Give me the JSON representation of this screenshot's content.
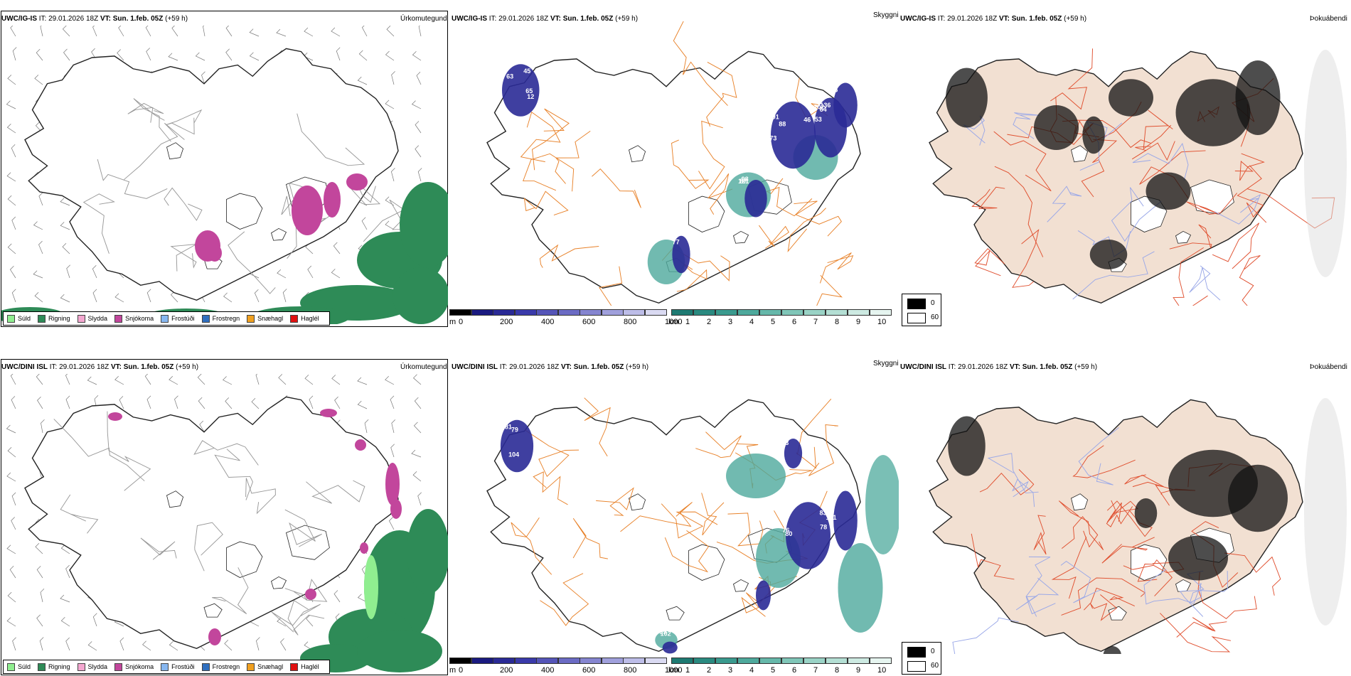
{
  "rows": [
    {
      "model": "UWC/IG-IS",
      "it_label": "IT:",
      "it_value": "29.01.2026 18Z",
      "vt_label": "VT:",
      "vt_value": "Sun. 1.feb. 05Z",
      "lead": "(+59 h)",
      "precip_labels": [
        "63",
        "73",
        "46",
        "87",
        "11",
        "136",
        "45",
        "88",
        "102",
        "98",
        "77",
        "64",
        "65",
        "64",
        "53",
        "121",
        "12",
        "75",
        "12",
        "101"
      ]
    },
    {
      "model": "UWC/DINI ISL",
      "it_label": "IT:",
      "it_value": "29.01.2026 18Z",
      "vt_label": "VT:",
      "vt_value": "Sun. 1.feb. 05Z",
      "lead": "(+59 h)",
      "precip_labels": [
        "81",
        "86",
        "83",
        "75",
        "53",
        "102",
        "79",
        "80",
        "78",
        "75",
        "100",
        "99",
        "104",
        "76",
        "101",
        "143"
      ]
    }
  ],
  "panel_titles": {
    "precip_type": "Úrkomutegund",
    "visibility": "Skyggni",
    "fog": "Þokuábendi"
  },
  "precip_type_legend": [
    {
      "label": "Súld",
      "color": "#90ee90"
    },
    {
      "label": "Rigning",
      "color": "#2e8b57"
    },
    {
      "label": "Slydda",
      "color": "#f4a7d0"
    },
    {
      "label": "Snjókoma",
      "color": "#c2469c"
    },
    {
      "label": "Frostúði",
      "color": "#87b7f0"
    },
    {
      "label": "Frostregn",
      "color": "#2f6fbf"
    },
    {
      "label": "Snæhagl",
      "color": "#f0a020"
    },
    {
      "label": "Haglél",
      "color": "#e01010"
    }
  ],
  "ceiling_scale": {
    "unit": "m",
    "ticks": [
      "0",
      "200",
      "400",
      "600",
      "800",
      "1000"
    ],
    "colors": [
      "#000000",
      "#1a1a80",
      "#2a2a96",
      "#3a3aaa",
      "#5555b8",
      "#6b6bc4",
      "#8585d0",
      "#a0a0dc",
      "#bdbde8",
      "#dadaf2"
    ]
  },
  "visibility_scale": {
    "unit": "km",
    "ticks": [
      "1",
      "2",
      "3",
      "4",
      "5",
      "6",
      "7",
      "8",
      "9",
      "10"
    ],
    "colors": [
      "#1e7a72",
      "#2a8a80",
      "#3a9a8e",
      "#4ea99c",
      "#66b8aa",
      "#80c6b8",
      "#9ad3c6",
      "#b4dfd4",
      "#cdeae2",
      "#e6f5f0"
    ]
  },
  "fog_legend": [
    {
      "label": "0",
      "color": "#000000"
    },
    {
      "label": "60",
      "color": "#ffffff"
    }
  ]
}
